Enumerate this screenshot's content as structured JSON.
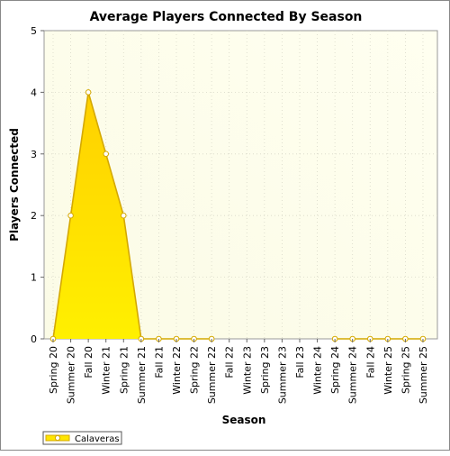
{
  "chart_data": {
    "type": "area",
    "title": "Average Players Connected By Season",
    "xlabel": "Season",
    "ylabel": "Players Connected",
    "ylim": [
      0,
      5
    ],
    "yticks": [
      "0",
      "1",
      "2",
      "3",
      "4",
      "5"
    ],
    "grid": true,
    "legend_position": "bottom-left",
    "categories": [
      "Spring 20",
      "Summer 20",
      "Fall 20",
      "Winter 21",
      "Spring 21",
      "Summer 21",
      "Fall 21",
      "Winter 22",
      "Spring 22",
      "Summer 22",
      "Fall 22",
      "Winter 23",
      "Spring 23",
      "Summer 23",
      "Fall 23",
      "Winter 24",
      "Spring 24",
      "Summer 24",
      "Fall 24",
      "Winter 25",
      "Spring 25",
      "Summer 25"
    ],
    "series": [
      {
        "name": "Calaveras",
        "values": [
          0,
          2,
          4,
          3,
          2,
          0,
          0,
          0,
          0,
          0,
          null,
          null,
          null,
          null,
          null,
          null,
          0,
          0,
          0,
          0,
          0,
          0
        ],
        "color": "#ffe600",
        "edge_color": "#d4a800"
      }
    ],
    "plot_background": [
      "#fbfbe6",
      "#fffff0"
    ]
  }
}
